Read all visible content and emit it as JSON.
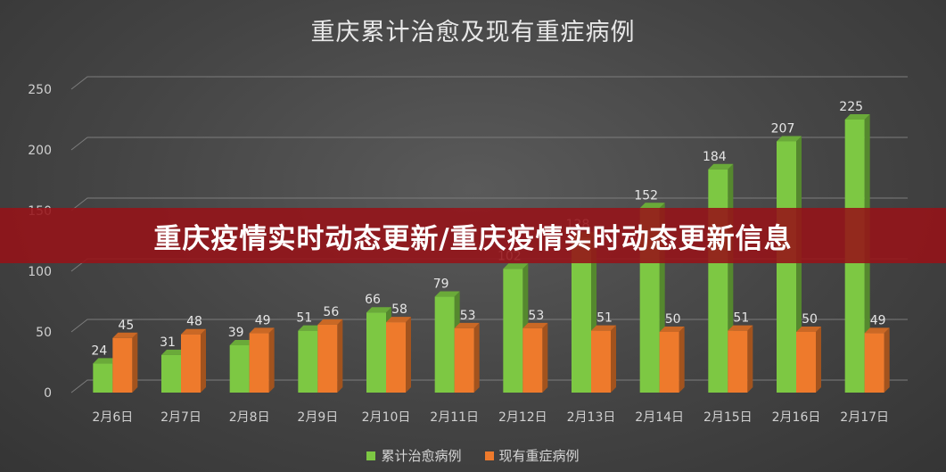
{
  "chart_data": {
    "type": "bar",
    "title": "重庆累计治愈及现有重症病例",
    "categories": [
      "2月6日",
      "2月7日",
      "2月8日",
      "2月9日",
      "2月10日",
      "2月11日",
      "2月12日",
      "2月13日",
      "2月14日",
      "2月15日",
      "2月16日",
      "2月17日"
    ],
    "series": [
      {
        "name": "累计治愈病例",
        "color": "#7dc843",
        "values": [
          24,
          31,
          39,
          51,
          66,
          79,
          102,
          128,
          152,
          184,
          207,
          225
        ]
      },
      {
        "name": "现有重症病例",
        "color": "#ee7a2c",
        "values": [
          45,
          48,
          49,
          56,
          58,
          53,
          53,
          51,
          50,
          51,
          50,
          49
        ]
      }
    ],
    "yticks": [
      "0",
      "50",
      "100",
      "150",
      "200",
      "250"
    ],
    "ylim": [
      0,
      250
    ],
    "grid": true,
    "legend_position": "bottom"
  },
  "banner": {
    "text": "重庆疫情实时动态更新/重庆疫情实时动态更新信息",
    "color": "#961218"
  }
}
